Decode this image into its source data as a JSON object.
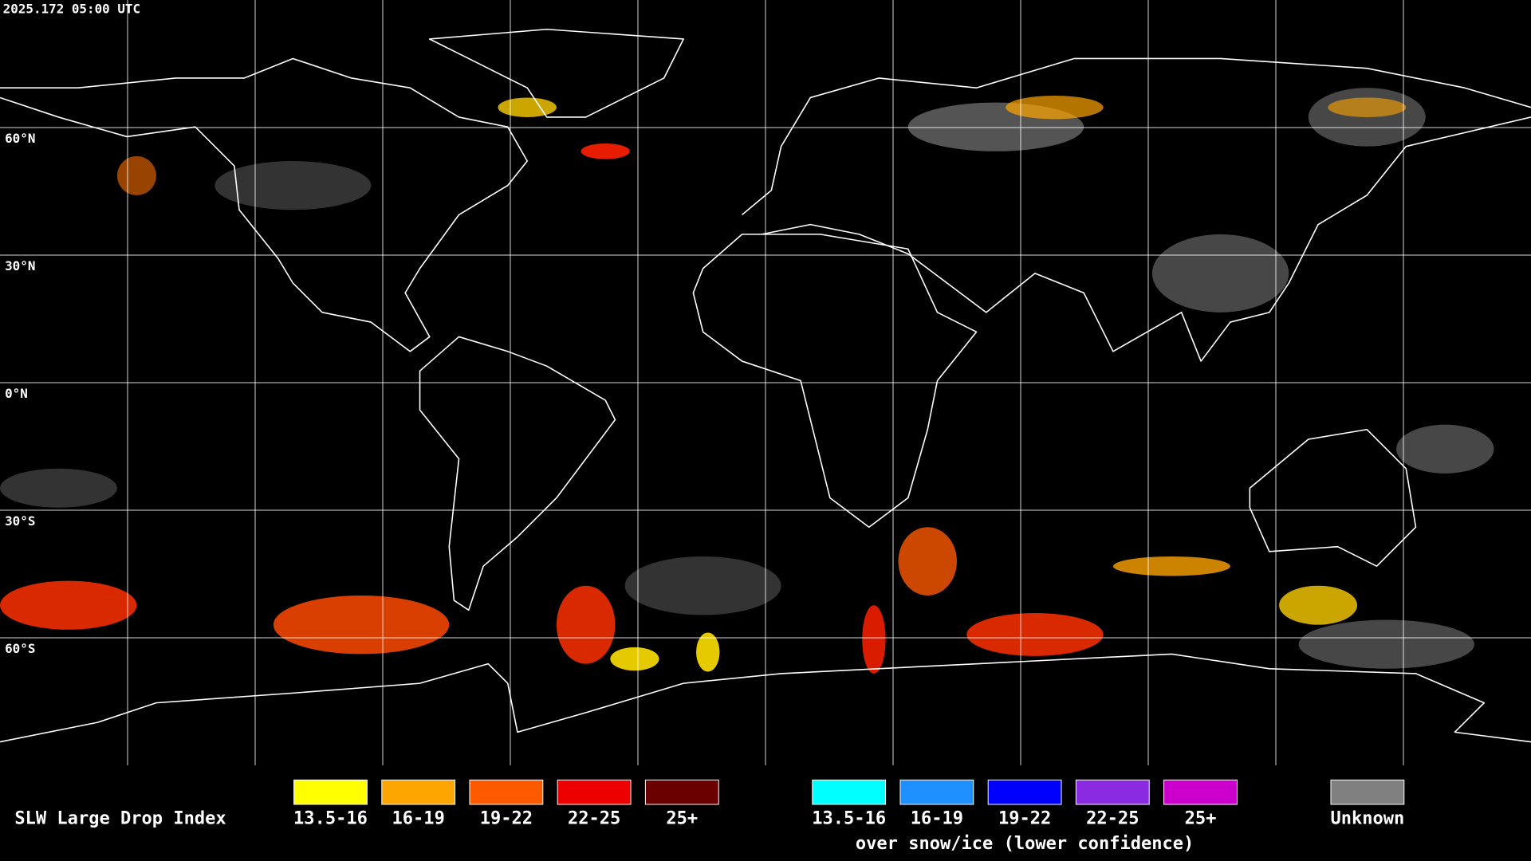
{
  "header": {
    "timestamp": "2025.172 05:00 UTC"
  },
  "map": {
    "latitude_labels": [
      "60°N",
      "30°N",
      "0°N",
      "30°S",
      "60°S"
    ]
  },
  "legend": {
    "title": "SLW Large Drop Index",
    "groups": [
      {
        "items": [
          {
            "label": "13.5-16",
            "color": "#ffff00"
          },
          {
            "label": "16-19",
            "color": "#ffa500"
          },
          {
            "label": "19-22",
            "color": "#ff5a00"
          },
          {
            "label": "22-25",
            "color": "#ee0000"
          },
          {
            "label": "25+",
            "color": "#6b0000"
          }
        ]
      },
      {
        "items": [
          {
            "label": "13.5-16",
            "color": "#00ffff"
          },
          {
            "label": "16-19",
            "color": "#1e90ff"
          },
          {
            "label": "19-22",
            "color": "#0000ff"
          },
          {
            "label": "22-25",
            "color": "#8a2be2"
          },
          {
            "label": "25+",
            "color": "#cc00cc"
          }
        ],
        "caption": "over snow/ice (lower confidence)"
      },
      {
        "items": [
          {
            "label": "Unknown",
            "color": "#808080"
          }
        ]
      }
    ]
  }
}
